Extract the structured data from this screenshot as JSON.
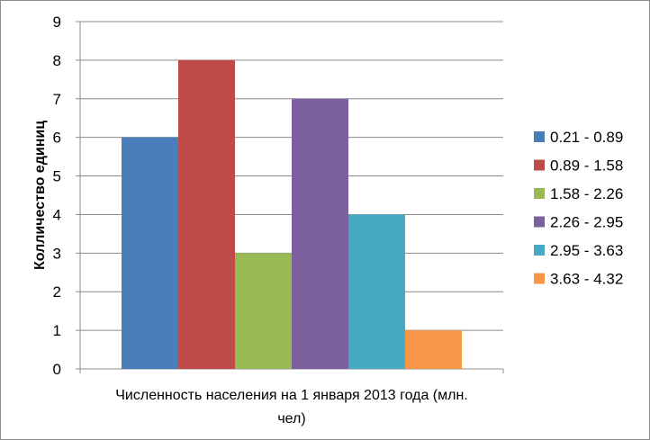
{
  "chart_data": {
    "type": "bar",
    "title": "",
    "xlabel": "Численность населения на 1 января 2013 года (млн. чел)",
    "xlabel_lines": [
      "Численность населения на 1 января 2013 года (млн.",
      "чел)"
    ],
    "ylabel": "Колличество единиц",
    "ylim": [
      0,
      9
    ],
    "yticks": [
      0,
      1,
      2,
      3,
      4,
      5,
      6,
      7,
      8,
      9
    ],
    "grid": true,
    "legend_position": "right",
    "categories": [
      ""
    ],
    "series": [
      {
        "name": "0.21 - 0.89",
        "values": [
          6
        ],
        "color": "#4a7ebb"
      },
      {
        "name": "0.89 - 1.58",
        "values": [
          8
        ],
        "color": "#be4b48"
      },
      {
        "name": "1.58 - 2.26",
        "values": [
          3
        ],
        "color": "#98b954"
      },
      {
        "name": "2.26 - 2.95",
        "values": [
          7
        ],
        "color": "#7d60a0"
      },
      {
        "name": "2.95 - 3.63",
        "values": [
          4
        ],
        "color": "#46aac5"
      },
      {
        "name": "3.63 - 4.32",
        "values": [
          1
        ],
        "color": "#f79646"
      }
    ]
  }
}
